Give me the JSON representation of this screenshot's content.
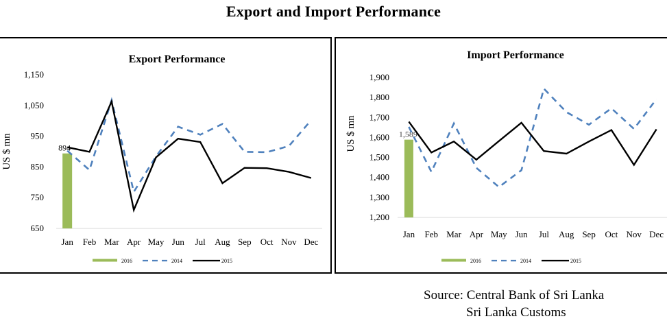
{
  "page": {
    "title": "Export and Import Performance",
    "source_line1": "Source: Central Bank of Sri Lanka",
    "source_line2": "Sri Lanka Customs"
  },
  "chart_data": [
    {
      "id": "export",
      "type": "line",
      "title": "Export Performance",
      "xlabel": "",
      "ylabel": "US $ mn",
      "categories": [
        "Jan",
        "Feb",
        "Mar",
        "Apr",
        "May",
        "Jun",
        "Jul",
        "Aug",
        "Sep",
        "Oct",
        "Nov",
        "Dec"
      ],
      "ylim": [
        650,
        1150
      ],
      "yticks": [
        650,
        750,
        850,
        950,
        1050,
        1150
      ],
      "ytick_labels": [
        "650",
        "750",
        "850",
        "950",
        "1,050",
        "1,150"
      ],
      "grid": false,
      "legend": "bottom",
      "series": [
        {
          "name": "2016",
          "kind": "bar",
          "color": "#9bbb59",
          "values": [
            894,
            null,
            null,
            null,
            null,
            null,
            null,
            null,
            null,
            null,
            null,
            null
          ],
          "data_label": "894"
        },
        {
          "name": "2014",
          "kind": "line",
          "style": "dashed",
          "color": "#4f81bd",
          "values": [
            903,
            840,
            1067,
            769,
            884,
            981,
            955,
            990,
            899,
            898,
            918,
            1002
          ]
        },
        {
          "name": "2015",
          "kind": "line",
          "style": "solid",
          "color": "#000000",
          "values": [
            914,
            899,
            1063,
            710,
            881,
            942,
            931,
            797,
            847,
            846,
            834,
            814
          ]
        }
      ]
    },
    {
      "id": "import",
      "type": "line",
      "title": "Import Performance",
      "xlabel": "",
      "ylabel": "US $ mn",
      "categories": [
        "Jan",
        "Feb",
        "Mar",
        "Apr",
        "May",
        "Jun",
        "Jul",
        "Aug",
        "Sep",
        "Oct",
        "Nov",
        "Dec"
      ],
      "ylim": [
        1200,
        1900
      ],
      "yticks": [
        1200,
        1300,
        1400,
        1500,
        1600,
        1700,
        1800,
        1900
      ],
      "ytick_labels": [
        "1,200",
        "1,300",
        "1,400",
        "1,500",
        "1,600",
        "1,700",
        "1,800",
        "1,900"
      ],
      "grid": false,
      "legend": "bottom",
      "series": [
        {
          "name": "2016",
          "kind": "bar",
          "color": "#9bbb59",
          "values": [
            1589,
            null,
            null,
            null,
            null,
            null,
            null,
            null,
            null,
            null,
            null,
            null
          ],
          "data_label": "1,589"
        },
        {
          "name": "2014",
          "kind": "line",
          "style": "dashed",
          "color": "#4f81bd",
          "values": [
            1653,
            1428,
            1670,
            1448,
            1352,
            1436,
            1844,
            1727,
            1664,
            1746,
            1643,
            1792
          ]
        },
        {
          "name": "2015",
          "kind": "line",
          "style": "solid",
          "color": "#000000",
          "values": [
            1679,
            1525,
            1580,
            1489,
            1582,
            1674,
            1532,
            1519,
            1580,
            1637,
            1463,
            1641
          ]
        }
      ]
    }
  ]
}
